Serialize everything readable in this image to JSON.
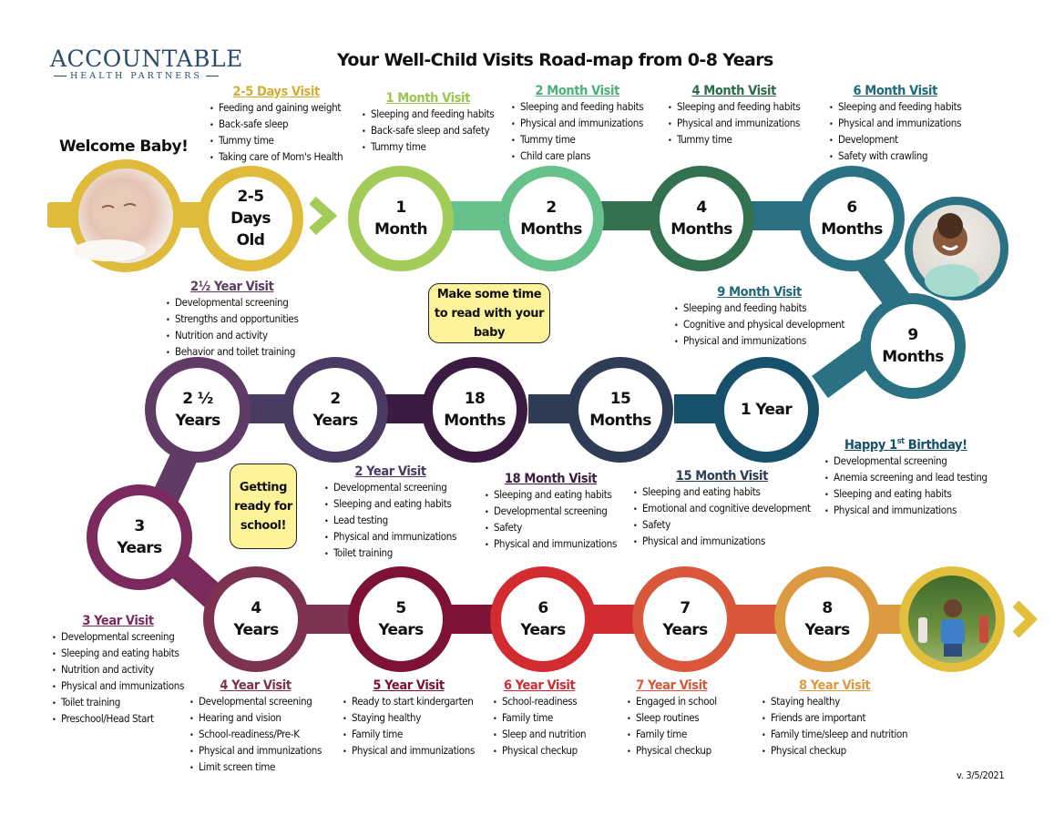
{
  "logo": {
    "main": "ACCOUNTABLE",
    "sub": "HEALTH PARTNERS"
  },
  "title": "Your Well-Child Visits Road-map from 0-8 Years",
  "welcome": "Welcome Baby!",
  "version": "v. 3/5/2021",
  "notes": {
    "read": "Make some time to read with your baby",
    "school": "Getting ready for school!"
  },
  "photos": {
    "newborn": "sleeping-baby-photo",
    "infant": "smiling-infant-photo",
    "child": "running-child-photo"
  },
  "colors": {
    "gold": "#dfbb3c",
    "lightgreen": "#a2cb58",
    "green": "#67c18b",
    "darkgreen": "#34714f",
    "teal": "#2a7283",
    "navy": "#16506a",
    "slate": "#2e3c55",
    "darkpurple": "#3b1b42",
    "purple": "#4b3a63",
    "plum": "#5f3b65",
    "magenta": "#7b2a5e",
    "wine": "#7d3350",
    "burgundy": "#7d1236",
    "red": "#d22b30",
    "orange": "#d9573a",
    "amber": "#dc9b40",
    "yellow": "#e2be3d"
  },
  "nodes": {
    "days": {
      "l1": "2-5",
      "l2": "Days",
      "l3": "Old"
    },
    "m1": {
      "l1": "1",
      "l2": "Month"
    },
    "m2": {
      "l1": "2",
      "l2": "Months"
    },
    "m4": {
      "l1": "4",
      "l2": "Months"
    },
    "m6": {
      "l1": "6",
      "l2": "Months"
    },
    "m9": {
      "l1": "9",
      "l2": "Months"
    },
    "y1": {
      "l1": "1 Year"
    },
    "m15": {
      "l1": "15",
      "l2": "Months"
    },
    "m18": {
      "l1": "18",
      "l2": "Months"
    },
    "y2": {
      "l1": "2",
      "l2": "Years"
    },
    "y25": {
      "l1": "2 ½",
      "l2": "Years"
    },
    "y3": {
      "l1": "3",
      "l2": "Years"
    },
    "y4": {
      "l1": "4",
      "l2": "Years"
    },
    "y5": {
      "l1": "5",
      "l2": "Years"
    },
    "y6": {
      "l1": "6",
      "l2": "Years"
    },
    "y7": {
      "l1": "7",
      "l2": "Years"
    },
    "y8": {
      "l1": "8",
      "l2": "Years"
    }
  },
  "visits": {
    "days": {
      "title": "2-5 Days Visit",
      "items": [
        "Feeding and gaining weight",
        "Back-safe sleep",
        "Tummy time",
        "Taking care of Mom's Health"
      ]
    },
    "m1": {
      "title": "1 Month Visit",
      "items": [
        "Sleeping and feeding habits",
        "Back-safe sleep and safety",
        "Tummy time"
      ]
    },
    "m2": {
      "title": "2 Month Visit",
      "items": [
        "Sleeping and feeding habits",
        "Physical and immunizations",
        "Tummy time",
        "Child care plans"
      ]
    },
    "m4": {
      "title": "4 Month Visit",
      "items": [
        "Sleeping and feeding habits",
        "Physical and immunizations",
        "Tummy time"
      ]
    },
    "m6": {
      "title": "6 Month Visit",
      "items": [
        "Sleeping and feeding habits",
        "Physical and immunizations",
        "Development",
        "Safety with crawling"
      ]
    },
    "m9": {
      "title": "9 Month Visit",
      "items": [
        "Sleeping and feeding habits",
        "Cognitive and physical development",
        "Physical and immunizations"
      ]
    },
    "y1": {
      "title_pre": "Happy 1",
      "title_sup": "st",
      "title_post": " Birthday!",
      "items": [
        "Developmental screening",
        "Anemia screening and lead testing",
        "Sleeping and eating habits",
        "Physical and immunizations"
      ]
    },
    "m15": {
      "title": "15 Month Visit",
      "items": [
        "Sleeping and eating habits",
        "Emotional and cognitive development",
        "Safety",
        "Physical and immunizations"
      ]
    },
    "m18": {
      "title": "18 Month Visit",
      "items": [
        "Sleeping and eating habits",
        "Developmental screening",
        "Safety",
        "Physical and immunizations"
      ]
    },
    "y2": {
      "title": "2 Year Visit",
      "items": [
        "Developmental screening",
        "Sleeping and eating habits",
        "Lead testing",
        "Physical and immunizations",
        "Toilet training"
      ]
    },
    "y25": {
      "title": "2½ Year Visit",
      "items": [
        "Developmental screening",
        "Strengths and opportunities",
        "Nutrition and activity",
        "Behavior and toilet training"
      ]
    },
    "y3": {
      "title": "3 Year Visit",
      "items": [
        "Developmental screening",
        "Sleeping and eating habits",
        "Nutrition and activity",
        "Physical and immunizations",
        "Toilet training",
        "Preschool/Head Start"
      ]
    },
    "y4": {
      "title": "4 Year Visit",
      "items": [
        "Developmental screening",
        "Hearing and vision",
        "School-readiness/Pre-K",
        "Physical and immunizations",
        "Limit screen time"
      ]
    },
    "y5": {
      "title": "5 Year Visit",
      "items": [
        "Ready to start kindergarten",
        "Staying healthy",
        "Family time",
        "Physical and immunizations"
      ]
    },
    "y6": {
      "title": "6 Year Visit",
      "items": [
        "School-readiness",
        "Family time",
        "Sleep and nutrition",
        "Physical checkup"
      ]
    },
    "y7": {
      "title": "7 Year Visit",
      "items": [
        "Engaged in school",
        "Sleep routines",
        "Family time",
        "Physical checkup"
      ]
    },
    "y8": {
      "title": "8 Year Visit",
      "items": [
        "Staying healthy",
        "Friends are important",
        "Family time/sleep and nutrition",
        "Physical checkup"
      ]
    }
  }
}
